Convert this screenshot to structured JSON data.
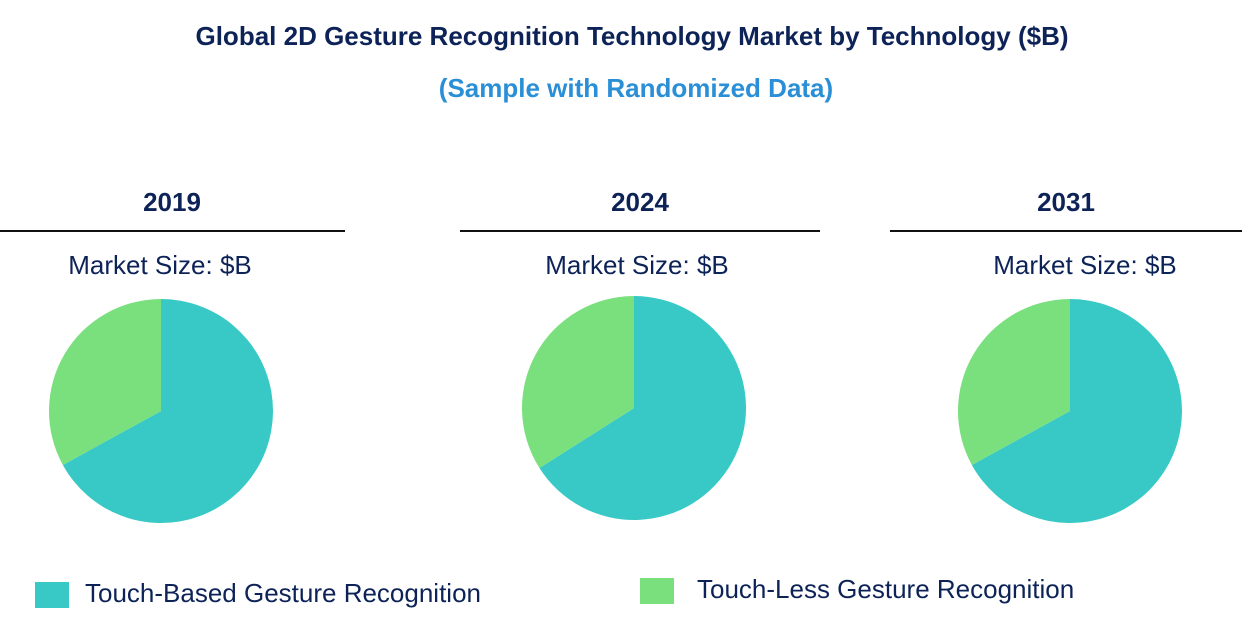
{
  "title": "Global 2D Gesture Recognition Technology Market by Technology ($B)",
  "subtitle": "(Sample with Randomized Data)",
  "chart_data": [
    {
      "type": "pie",
      "title": "2019",
      "subtitle": "Market Size: $B",
      "categories": [
        "Touch-Based Gesture Recognition",
        "Touch-Less Gesture Recognition"
      ],
      "colors": [
        "#38c9c6",
        "#7ae07e"
      ],
      "values": [
        67,
        33
      ]
    },
    {
      "type": "pie",
      "title": "2024",
      "subtitle": "Market Size: $B",
      "categories": [
        "Touch-Based Gesture Recognition",
        "Touch-Less Gesture Recognition"
      ],
      "colors": [
        "#38c9c6",
        "#7ae07e"
      ],
      "values": [
        66,
        34
      ]
    },
    {
      "type": "pie",
      "title": "2031",
      "subtitle": "Market Size: $B",
      "categories": [
        "Touch-Based Gesture Recognition",
        "Touch-Less Gesture Recognition"
      ],
      "colors": [
        "#38c9c6",
        "#7ae07e"
      ],
      "values": [
        67,
        33
      ]
    }
  ]
}
